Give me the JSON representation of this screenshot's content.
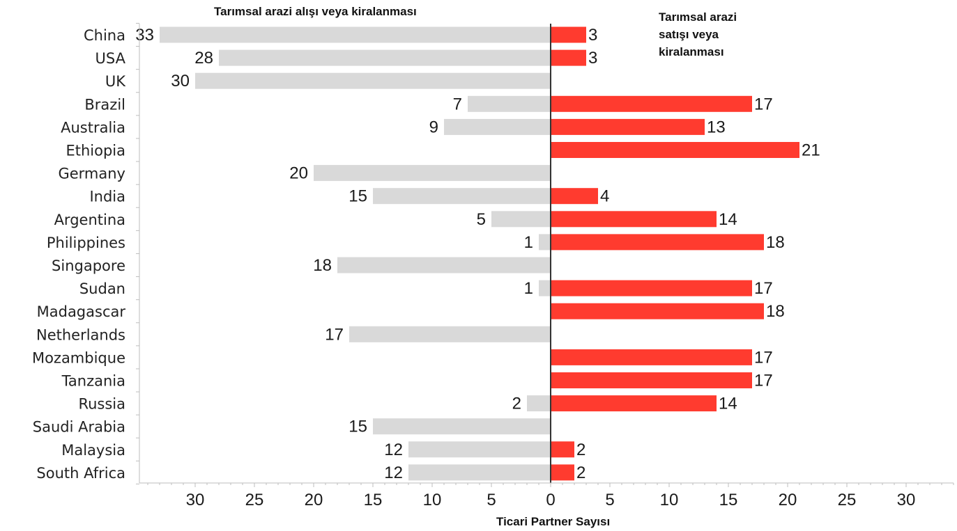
{
  "chart_data": {
    "type": "bar",
    "orientation": "horizontal-diverging",
    "left_title": "Tarımsal arazi alışı veya kiralanması",
    "right_title_lines": [
      "Tarımsal arazi",
      "satışı veya",
      "kiralanması"
    ],
    "xlabel": "Ticari Partner Sayısı",
    "categories": [
      "China",
      "USA",
      "UK",
      "Brazil",
      "Australia",
      "Ethiopia",
      "Germany",
      "India",
      "Argentina",
      "Philippines",
      "Singapore",
      "Sudan",
      "Madagascar",
      "Netherlands",
      "Mozambique",
      "Tanzania",
      "Russia",
      "Saudi Arabia",
      "Malaysia",
      "South Africa"
    ],
    "series": [
      {
        "values": [
          33,
          28,
          30,
          7,
          9,
          null,
          20,
          15,
          5,
          1,
          18,
          1,
          null,
          17,
          null,
          null,
          2,
          15,
          12,
          12
        ],
        "color": "#d9d9d9"
      },
      {
        "values": [
          3,
          3,
          null,
          17,
          13,
          21,
          null,
          4,
          14,
          18,
          null,
          17,
          18,
          null,
          17,
          17,
          14,
          null,
          2,
          2
        ],
        "color": "#ff3b2f"
      }
    ],
    "xticks_left": [
      30,
      25,
      20,
      15,
      10,
      5
    ],
    "xticks_right": [
      0,
      5,
      10,
      15,
      20,
      25,
      30
    ],
    "xlim_left": [
      0,
      35
    ],
    "xlim_right": [
      0,
      35
    ],
    "grid": false
  }
}
